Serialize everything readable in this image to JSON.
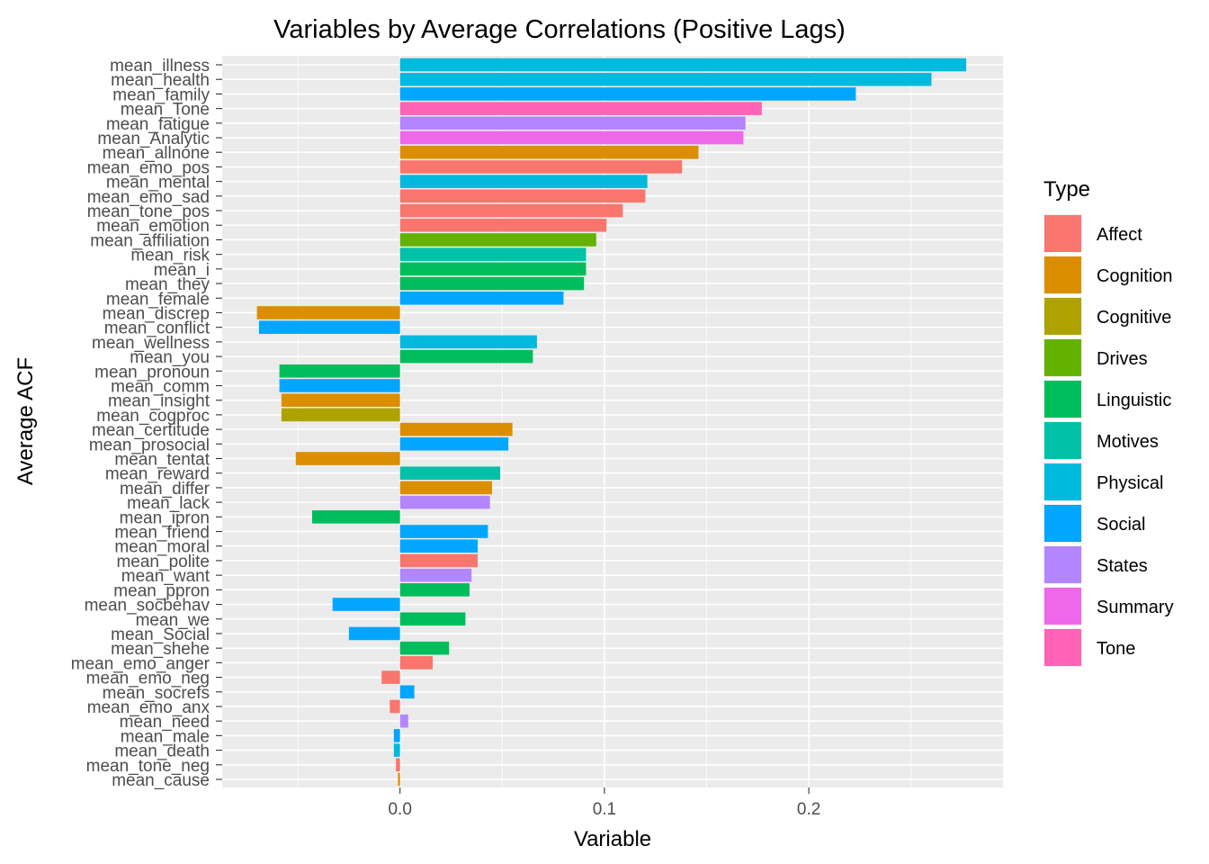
{
  "chart_data": {
    "type": "bar",
    "orientation": "horizontal",
    "title": "Variables by Average Correlations (Positive Lags)",
    "xlabel": "Variable",
    "ylabel": "Average ACF",
    "xlim": [
      -0.087,
      0.295
    ],
    "xticks": [
      0.0,
      0.1,
      0.2
    ],
    "xtick_labels": [
      "0.0",
      "0.1",
      "0.2"
    ],
    "grid": true,
    "legend": {
      "title": "Type",
      "placement": "right",
      "entries": [
        {
          "name": "Affect",
          "color": "#F8766D"
        },
        {
          "name": "Cognition",
          "color": "#DB8E00"
        },
        {
          "name": "Cognitive",
          "color": "#AEA200"
        },
        {
          "name": "Drives",
          "color": "#64B200"
        },
        {
          "name": "Linguistic",
          "color": "#00BD5C"
        },
        {
          "name": "Motives",
          "color": "#00C1A7"
        },
        {
          "name": "Physical",
          "color": "#00BADE"
        },
        {
          "name": "Social",
          "color": "#00A6FF"
        },
        {
          "name": "States",
          "color": "#B385FF"
        },
        {
          "name": "Summary",
          "color": "#EF67EB"
        },
        {
          "name": "Tone",
          "color": "#FF63B6"
        }
      ]
    },
    "bars": [
      {
        "label": "mean_illness",
        "value": 0.277,
        "type": "Physical"
      },
      {
        "label": "mean_health",
        "value": 0.26,
        "type": "Physical"
      },
      {
        "label": "mean_family",
        "value": 0.223,
        "type": "Social"
      },
      {
        "label": "mean_Tone",
        "value": 0.177,
        "type": "Tone"
      },
      {
        "label": "mean_fatigue",
        "value": 0.169,
        "type": "States"
      },
      {
        "label": "mean_Analytic",
        "value": 0.168,
        "type": "Summary"
      },
      {
        "label": "mean_allnone",
        "value": 0.146,
        "type": "Cognition"
      },
      {
        "label": "mean_emo_pos",
        "value": 0.138,
        "type": "Affect"
      },
      {
        "label": "mean_mental",
        "value": 0.121,
        "type": "Physical"
      },
      {
        "label": "mean_emo_sad",
        "value": 0.12,
        "type": "Affect"
      },
      {
        "label": "mean_tone_pos",
        "value": 0.109,
        "type": "Affect"
      },
      {
        "label": "mean_emotion",
        "value": 0.101,
        "type": "Affect"
      },
      {
        "label": "mean_affiliation",
        "value": 0.096,
        "type": "Drives"
      },
      {
        "label": "mean_risk",
        "value": 0.091,
        "type": "Motives"
      },
      {
        "label": "mean_i",
        "value": 0.091,
        "type": "Linguistic"
      },
      {
        "label": "mean_they",
        "value": 0.09,
        "type": "Linguistic"
      },
      {
        "label": "mean_female",
        "value": 0.08,
        "type": "Social"
      },
      {
        "label": "mean_discrep",
        "value": -0.07,
        "type": "Cognition"
      },
      {
        "label": "mean_conflict",
        "value": -0.069,
        "type": "Social"
      },
      {
        "label": "mean_wellness",
        "value": 0.067,
        "type": "Physical"
      },
      {
        "label": "mean_you",
        "value": 0.065,
        "type": "Linguistic"
      },
      {
        "label": "mean_pronoun",
        "value": -0.059,
        "type": "Linguistic"
      },
      {
        "label": "mean_comm",
        "value": -0.059,
        "type": "Social"
      },
      {
        "label": "mean_insight",
        "value": -0.058,
        "type": "Cognition"
      },
      {
        "label": "mean_cogproc",
        "value": -0.058,
        "type": "Cognitive"
      },
      {
        "label": "mean_certitude",
        "value": 0.055,
        "type": "Cognition"
      },
      {
        "label": "mean_prosocial",
        "value": 0.053,
        "type": "Social"
      },
      {
        "label": "mean_tentat",
        "value": -0.051,
        "type": "Cognition"
      },
      {
        "label": "mean_reward",
        "value": 0.049,
        "type": "Motives"
      },
      {
        "label": "mean_differ",
        "value": 0.045,
        "type": "Cognition"
      },
      {
        "label": "mean_lack",
        "value": 0.044,
        "type": "States"
      },
      {
        "label": "mean_ipron",
        "value": -0.043,
        "type": "Linguistic"
      },
      {
        "label": "mean_friend",
        "value": 0.043,
        "type": "Social"
      },
      {
        "label": "mean_moral",
        "value": 0.038,
        "type": "Social"
      },
      {
        "label": "mean_polite",
        "value": 0.038,
        "type": "Affect"
      },
      {
        "label": "mean_want",
        "value": 0.035,
        "type": "States"
      },
      {
        "label": "mean_ppron",
        "value": 0.034,
        "type": "Linguistic"
      },
      {
        "label": "mean_socbehav",
        "value": -0.033,
        "type": "Social"
      },
      {
        "label": "mean_we",
        "value": 0.032,
        "type": "Linguistic"
      },
      {
        "label": "mean_Social",
        "value": -0.025,
        "type": "Social"
      },
      {
        "label": "mean_shehe",
        "value": 0.024,
        "type": "Linguistic"
      },
      {
        "label": "mean_emo_anger",
        "value": 0.016,
        "type": "Affect"
      },
      {
        "label": "mean_emo_neg",
        "value": -0.009,
        "type": "Affect"
      },
      {
        "label": "mean_socrefs",
        "value": 0.007,
        "type": "Social"
      },
      {
        "label": "mean_emo_anx",
        "value": -0.005,
        "type": "Affect"
      },
      {
        "label": "mean_need",
        "value": 0.004,
        "type": "States"
      },
      {
        "label": "mean_male",
        "value": -0.003,
        "type": "Social"
      },
      {
        "label": "mean_death",
        "value": -0.003,
        "type": "Physical"
      },
      {
        "label": "mean_tone_neg",
        "value": -0.002,
        "type": "Affect"
      },
      {
        "label": "mean_cause",
        "value": -0.001,
        "type": "Cognition"
      }
    ]
  }
}
